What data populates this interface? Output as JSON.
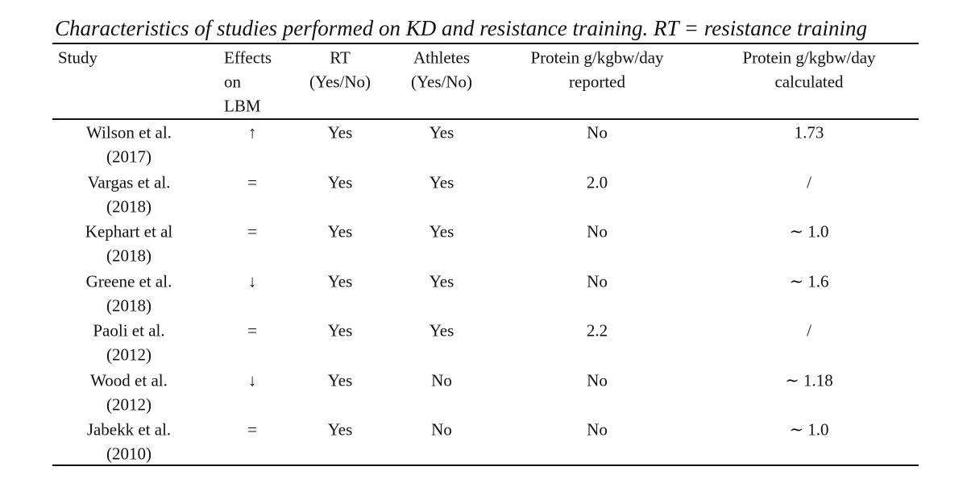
{
  "table": {
    "caption": "Characteristics of studies performed on KD and resistance training. RT = resistance training",
    "headers": [
      [
        "Study"
      ],
      [
        "Effects",
        "on",
        "LBM"
      ],
      [
        "RT",
        "(Yes/No)"
      ],
      [
        "Athletes",
        "(Yes/No)"
      ],
      [
        "Protein g/kgbw/day",
        "reported"
      ],
      [
        "Protein g/kgbw/day",
        "calculated"
      ]
    ],
    "rows": [
      [
        [
          "Wilson et al.",
          "(2017)"
        ],
        "↑",
        "Yes",
        "Yes",
        "No",
        "1.73"
      ],
      [
        [
          "Vargas et al.",
          "(2018)"
        ],
        "=",
        "Yes",
        "Yes",
        "2.0",
        "/"
      ],
      [
        [
          "Kephart et al",
          "(2018)"
        ],
        "=",
        "Yes",
        "Yes",
        "No",
        "∼ 1.0"
      ],
      [
        [
          "Greene et al.",
          "(2018)"
        ],
        "↓",
        "Yes",
        "Yes",
        "No",
        "∼ 1.6"
      ],
      [
        [
          "Paoli et al.",
          "(2012)"
        ],
        "=",
        "Yes",
        "Yes",
        "2.2",
        "/"
      ],
      [
        [
          "Wood et al.",
          "(2012)"
        ],
        "↓",
        "Yes",
        "No",
        "No",
        "∼ 1.18"
      ],
      [
        [
          "Jabekk et al.",
          "(2010)"
        ],
        "=",
        "Yes",
        "No",
        "No",
        "∼ 1.0"
      ]
    ]
  }
}
